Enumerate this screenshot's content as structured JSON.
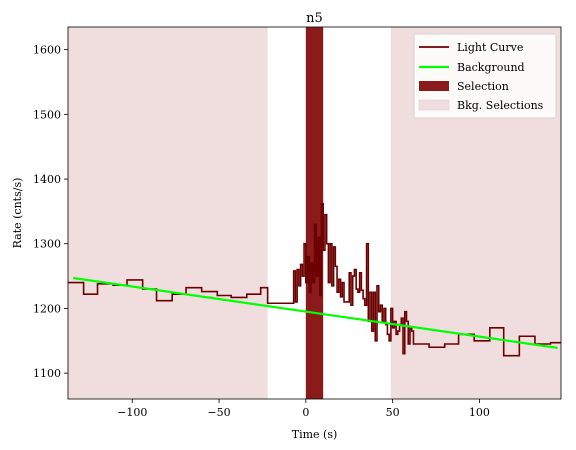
{
  "chart_data": {
    "type": "line",
    "title": "n5",
    "xlabel": "Time (s)",
    "ylabel": "Rate (cnts/s)",
    "xlim": [
      -137,
      147
    ],
    "ylim": [
      1060,
      1635
    ],
    "xticks": [
      -100,
      -50,
      0,
      50,
      100
    ],
    "xtick_labels": [
      "−100",
      "−50",
      "0",
      "50",
      "100"
    ],
    "yticks": [
      1100,
      1200,
      1300,
      1400,
      1500,
      1600
    ],
    "ytick_labels": [
      "1100",
      "1200",
      "1300",
      "1400",
      "1500",
      "1600"
    ],
    "legend_position": "top-right",
    "grid": false,
    "colors": {
      "light_curve": "#6b0000",
      "background": "#00ff00",
      "selection": "#8b1a1a",
      "bkg_selection": "#f0dede"
    },
    "series": [
      {
        "name": "Light Curve",
        "kind": "step",
        "x": [
          -137,
          -128,
          -120,
          -111,
          -103,
          -94,
          -86,
          -77,
          -69,
          -60,
          -51,
          -43,
          -34,
          -26,
          -22,
          -8,
          -7,
          -6,
          -5,
          -4,
          -3,
          -2,
          -1,
          0,
          1,
          2,
          3,
          4,
          5,
          6,
          7,
          8,
          9,
          10,
          11,
          12,
          13,
          14,
          15,
          16,
          17,
          18,
          19,
          20,
          21,
          22,
          23,
          24,
          25,
          26,
          27,
          28,
          29,
          30,
          31,
          32,
          33,
          34,
          35,
          36,
          37,
          38,
          39,
          40,
          41,
          42,
          43,
          44,
          45,
          46,
          47,
          48,
          49,
          50,
          51,
          52,
          53,
          54,
          55,
          56,
          57,
          58,
          59,
          60,
          61,
          62,
          71,
          80,
          88,
          97,
          106,
          114,
          123,
          132,
          141,
          147
        ],
        "y": [
          1240,
          1222,
          1238,
          1236,
          1244,
          1230,
          1212,
          1222,
          1232,
          1226,
          1220,
          1217,
          1222,
          1232,
          1208,
          1208,
          1258,
          1210,
          1260,
          1235,
          1268,
          1250,
          1300,
          1240,
          1280,
          1225,
          1270,
          1240,
          1330,
          1250,
          1310,
          1220,
          1362,
          1290,
          1345,
          1300,
          1240,
          1300,
          1235,
          1295,
          1265,
          1225,
          1245,
          1218,
          1240,
          1210,
          1210,
          1210,
          1255,
          1205,
          1250,
          1260,
          1230,
          1225,
          1255,
          1228,
          1215,
          1205,
          1300,
          1180,
          1225,
          1165,
          1225,
          1150,
          1235,
          1195,
          1205,
          1180,
          1200,
          1175,
          1160,
          1150,
          1200,
          1170,
          1180,
          1160,
          1165,
          1175,
          1185,
          1130,
          1195,
          1180,
          1145,
          1170,
          1165,
          1145,
          1140,
          1145,
          1160,
          1150,
          1170,
          1127,
          1157,
          1145,
          1147,
          1147
        ]
      },
      {
        "name": "Background",
        "kind": "line",
        "x": [
          -134,
          145
        ],
        "y": [
          1247,
          1139
        ]
      },
      {
        "name": "Selection",
        "kind": "region",
        "x_range": [
          0,
          10
        ]
      },
      {
        "name": "Bkg. Selections",
        "kind": "region",
        "x_ranges": [
          [
            -137,
            -22
          ],
          [
            49,
            147
          ]
        ]
      }
    ]
  }
}
